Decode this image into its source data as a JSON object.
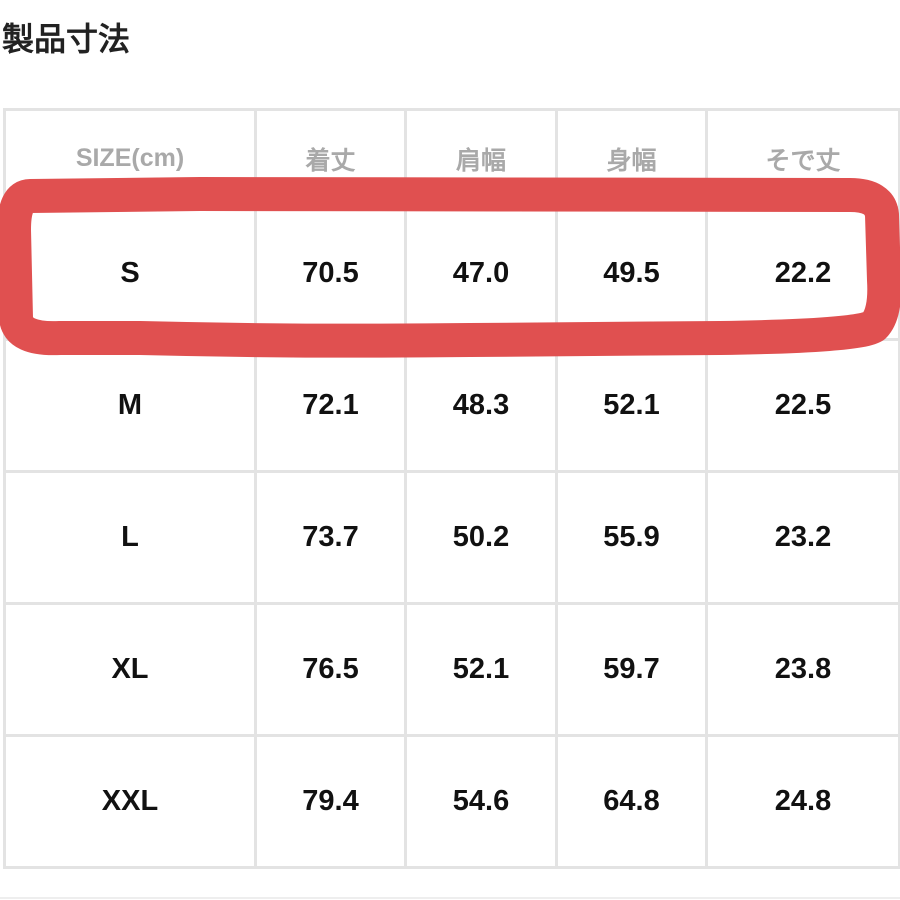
{
  "title": "製品寸法",
  "table": {
    "headers": [
      "SIZE(cm)",
      "着丈",
      "肩幅",
      "身幅",
      "そで丈"
    ],
    "rows": [
      [
        "S",
        "70.5",
        "47.0",
        "49.5",
        "22.2"
      ],
      [
        "M",
        "72.1",
        "48.3",
        "52.1",
        "22.5"
      ],
      [
        "L",
        "73.7",
        "50.2",
        "55.9",
        "23.2"
      ],
      [
        "XL",
        "76.5",
        "52.1",
        "59.7",
        "23.8"
      ],
      [
        "XXL",
        "79.4",
        "54.6",
        "64.8",
        "24.8"
      ]
    ]
  },
  "annotation": {
    "highlighted_row": "S",
    "color": "#e05050"
  }
}
